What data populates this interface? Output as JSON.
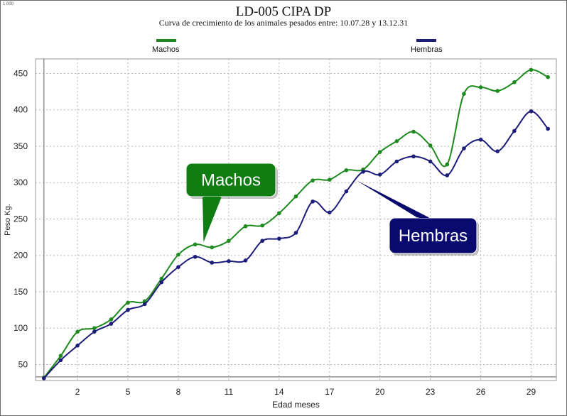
{
  "corner_label": "1.000",
  "chart_data": {
    "type": "line",
    "title": "LD-005  CIPA DP",
    "subtitle": "Curva de crecimiento de los animales pesados entre: 10.07.28 y 13.12.31",
    "xlabel": "Edad meses",
    "ylabel": "Peso Kg.",
    "xlim": [
      -0.5,
      30.5
    ],
    "ylim": [
      28,
      470
    ],
    "xticks": [
      2,
      5,
      8,
      11,
      14,
      17,
      20,
      23,
      26,
      29
    ],
    "yticks": [
      50,
      100,
      150,
      200,
      250,
      300,
      350,
      400,
      450
    ],
    "grid": true,
    "legend_position": "top",
    "series": [
      {
        "name": "Machos",
        "color": "#1e8a1e",
        "x": [
          0,
          1,
          2,
          3,
          4,
          5,
          6,
          7,
          8,
          9,
          10,
          11,
          12,
          13,
          14,
          15,
          16,
          17,
          18,
          19,
          20,
          21,
          22,
          23,
          24,
          25,
          26,
          27,
          28,
          29,
          30
        ],
        "y": [
          32,
          62,
          95,
          100,
          112,
          135,
          137,
          168,
          201,
          215,
          211,
          220,
          240,
          241,
          258,
          281,
          303,
          304,
          317,
          318,
          342,
          357,
          370,
          351,
          325,
          422,
          431,
          426,
          438,
          455,
          445
        ]
      },
      {
        "name": "Hembras",
        "color": "#1c1c7a",
        "x": [
          0,
          1,
          2,
          3,
          4,
          5,
          6,
          7,
          8,
          9,
          10,
          11,
          12,
          13,
          14,
          15,
          16,
          17,
          18,
          19,
          20,
          21,
          22,
          23,
          24,
          25,
          26,
          27,
          28,
          29,
          30
        ],
        "y": [
          31,
          56,
          76,
          95,
          106,
          125,
          133,
          163,
          184,
          198,
          190,
          192,
          193,
          220,
          223,
          231,
          274,
          259,
          288,
          315,
          311,
          329,
          336,
          329,
          310,
          347,
          359,
          343,
          371,
          398,
          374
        ]
      }
    ],
    "annotations": [
      {
        "text": "Machos",
        "color": "#0f7d12",
        "points_to": {
          "x": 9.5,
          "y": 218
        }
      },
      {
        "text": "Hembras",
        "color": "#0a0a6e",
        "points_to": {
          "x": 18.6,
          "y": 303
        }
      }
    ]
  }
}
